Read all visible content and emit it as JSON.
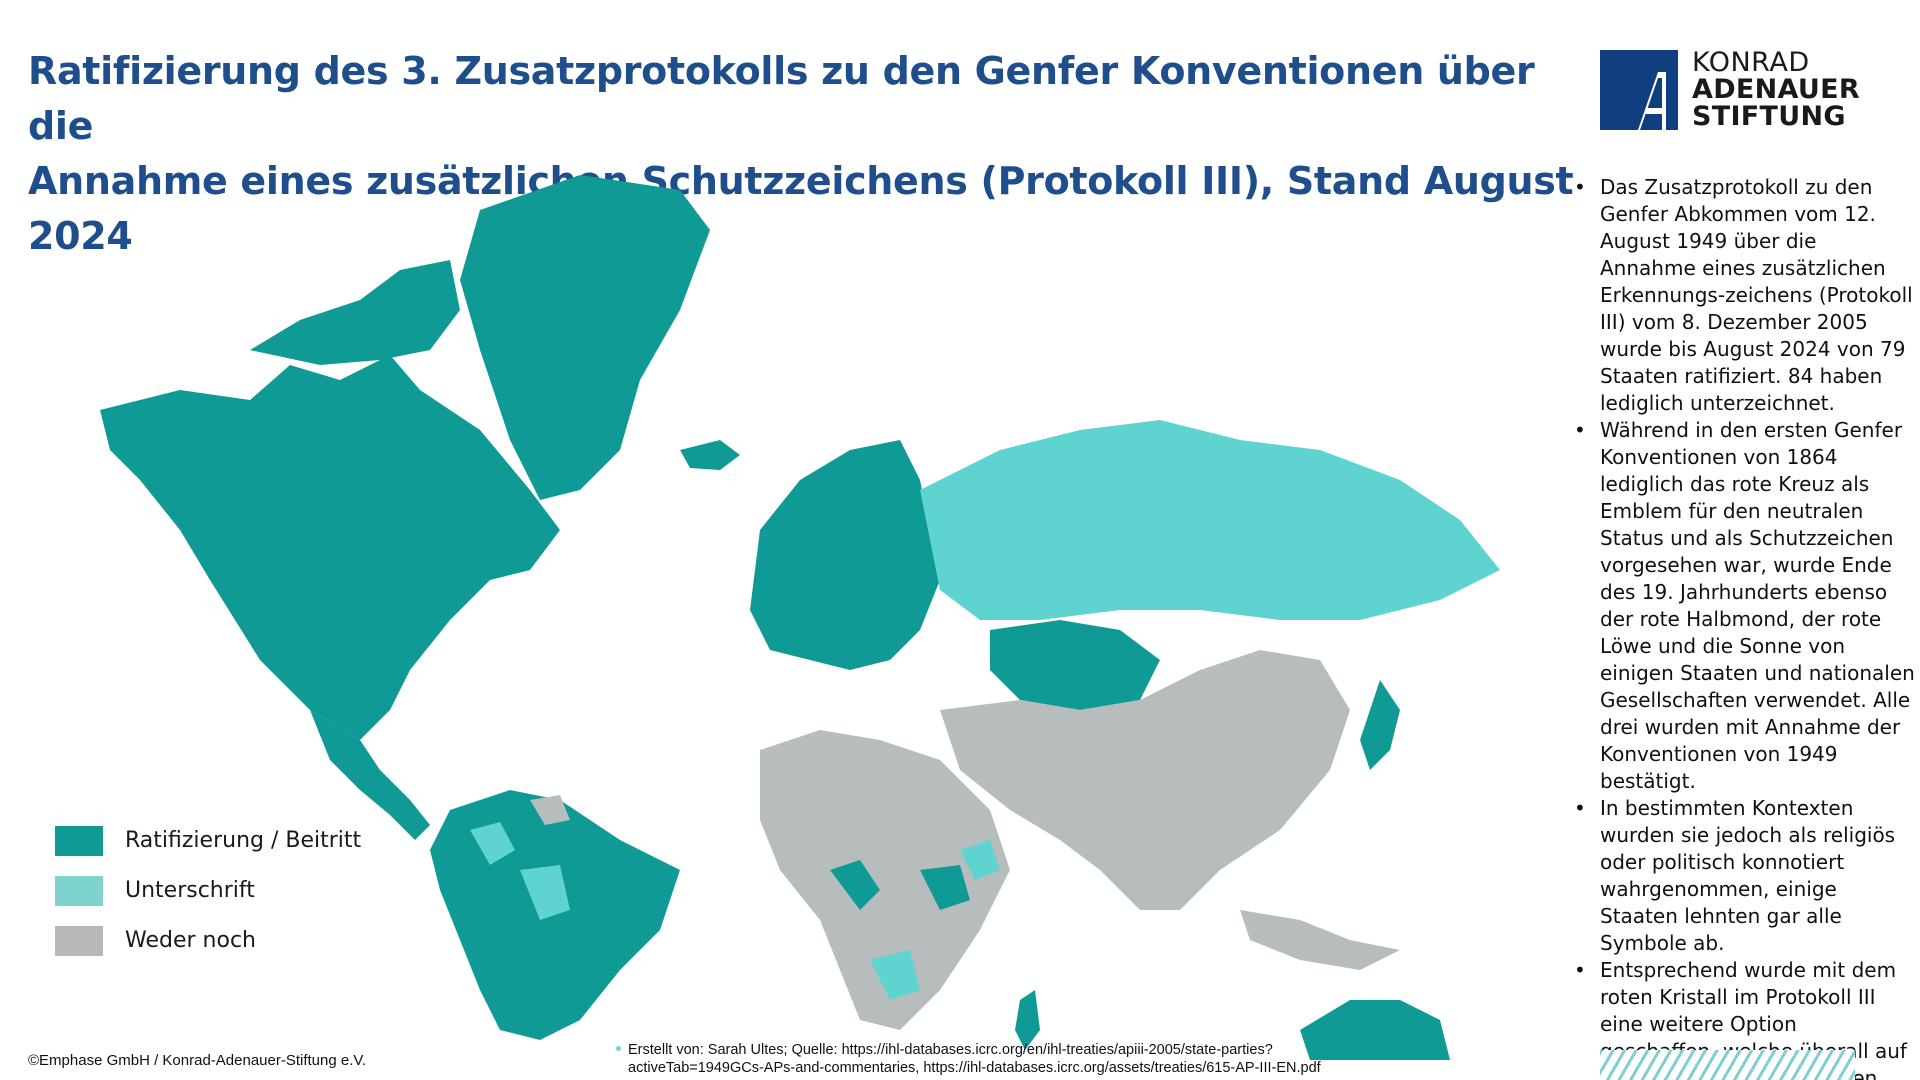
{
  "title": {
    "line1": "Ratifizierung des 3. Zusatzprotokolls zu den Genfer Konventionen über die",
    "line2": "Annahme eines zusätzlichen Schutzzeichens (Protokoll III), Stand August 2024"
  },
  "logo": {
    "line1": "KONRAD",
    "line2": "ADENAUER",
    "line3": "STIFTUNG",
    "color": "#0f3f7f"
  },
  "colors": {
    "ratified": "#0f9a96",
    "signed": "#5ed3cf",
    "neither": "#b7bdbd",
    "title": "#1f4e8c"
  },
  "legend": [
    {
      "label": "Ratifizierung / Beitritt",
      "color": "#0f9a96"
    },
    {
      "label": "Unterschrift",
      "color": "#7fd3cf"
    },
    {
      "label": "Weder noch",
      "color": "#b8b8b8"
    }
  ],
  "sidebar": {
    "bullets": [
      "Das Zusatzprotokoll zu den Genfer Abkommen vom 12. August 1949 über die Annahme eines zusätzlichen Erkennungs-zeichens (Protokoll III) vom 8. Dezember 2005 wurde bis August 2024 von 79 Staaten ratifiziert. 84 haben lediglich unterzeichnet.",
      "Während in den ersten Genfer Konventionen von 1864 lediglich das rote Kreuz als Emblem für den neutralen Status und als Schutzzeichen vorgesehen war, wurde Ende des 19. Jahrhunderts ebenso der rote Halbmond, der rote Löwe und die Sonne von einigen Staaten und nationalen Gesellschaften verwendet. Alle drei wurden mit Annahme der Konventionen von 1949 bestätigt.",
      "In bestimmten Kontexten wurden sie jedoch als religiös oder politisch konnotiert wahrgenommen, einige Staaten lehnten gar alle Symbole ab.",
      "Entsprechend wurde mit dem roten Kristall im Protokoll III eine weitere Option geschaffen, welche überall auf der Welt verwendet werden kann."
    ]
  },
  "footer": {
    "copyright": "©Emphase GmbH / Konrad-Adenauer-Stiftung e.V.",
    "source_line1": "Erstellt von: Sarah Ultes; Quelle: https://ihl-databases.icrc.org/en/ihl-treaties/apiii-2005/state-parties?",
    "source_line2": "activeTab=1949GCs-APs-and-commentaries, https://ihl-databases.icrc.org/assets/treaties/615-AP-III-EN.pdf"
  }
}
